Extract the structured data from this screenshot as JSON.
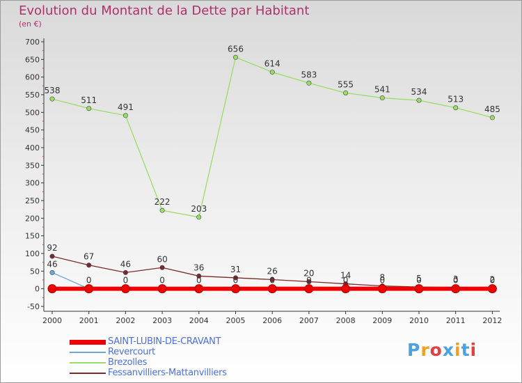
{
  "title": "Evolution du Montant de la Dette par Habitant",
  "subtitle": "(en €)",
  "logo": {
    "text": "Proxiti",
    "colors": [
      "#4aa3df",
      "#f0a020",
      "#e04040",
      "#4aa3df",
      "#f0a020",
      "#4aa3df",
      "#e04040"
    ]
  },
  "chart_data": {
    "type": "line",
    "title": "Evolution du Montant de la Dette par Habitant",
    "ylabel": "(en €)",
    "xlabel": "",
    "ylim": [
      -50,
      700
    ],
    "yticks": [
      -50,
      0,
      50,
      100,
      150,
      200,
      250,
      300,
      350,
      400,
      450,
      500,
      550,
      600,
      650,
      700
    ],
    "grid": false,
    "categories": [
      "2000",
      "2001",
      "2002",
      "2003",
      "2004",
      "2005",
      "2006",
      "2007",
      "2008",
      "2009",
      "2010",
      "2011",
      "2012"
    ],
    "series": [
      {
        "name": "SAINT-LUBIN-DE-CRAVANT",
        "color": "#ee0000",
        "values": [
          0,
          0,
          0,
          0,
          0,
          0,
          0,
          0,
          0,
          0,
          0,
          0,
          0
        ],
        "labels": [
          "",
          "",
          "",
          "",
          "",
          "",
          "",
          "",
          "",
          "",
          "",
          "",
          ""
        ]
      },
      {
        "name": "Revercourt",
        "color": "#6fa8d6",
        "values": [
          46,
          0,
          0,
          0,
          0,
          0,
          0,
          0,
          0,
          0,
          0,
          0,
          0
        ],
        "labels": [
          "46",
          "0",
          "0",
          "0",
          "0",
          "0",
          "0",
          "0",
          "0",
          "0",
          "0",
          "0",
          "0"
        ]
      },
      {
        "name": "Brezolles",
        "color": "#99dd66",
        "values": [
          538,
          511,
          491,
          222,
          203,
          656,
          614,
          583,
          555,
          541,
          534,
          513,
          485
        ],
        "labels": [
          "538",
          "511",
          "491",
          "222",
          "203",
          "656",
          "614",
          "583",
          "555",
          "541",
          "534",
          "513",
          "485"
        ]
      },
      {
        "name": "Fessanvilliers-Mattanvilliers",
        "color": "#7a2a2a",
        "values": [
          92,
          67,
          46,
          60,
          36,
          31,
          26,
          20,
          14,
          8,
          5,
          3,
          2
        ],
        "labels": [
          "92",
          "67",
          "46",
          "60",
          "36",
          "31",
          "26",
          "20",
          "14",
          "8",
          "5",
          "3",
          "2"
        ]
      }
    ]
  }
}
